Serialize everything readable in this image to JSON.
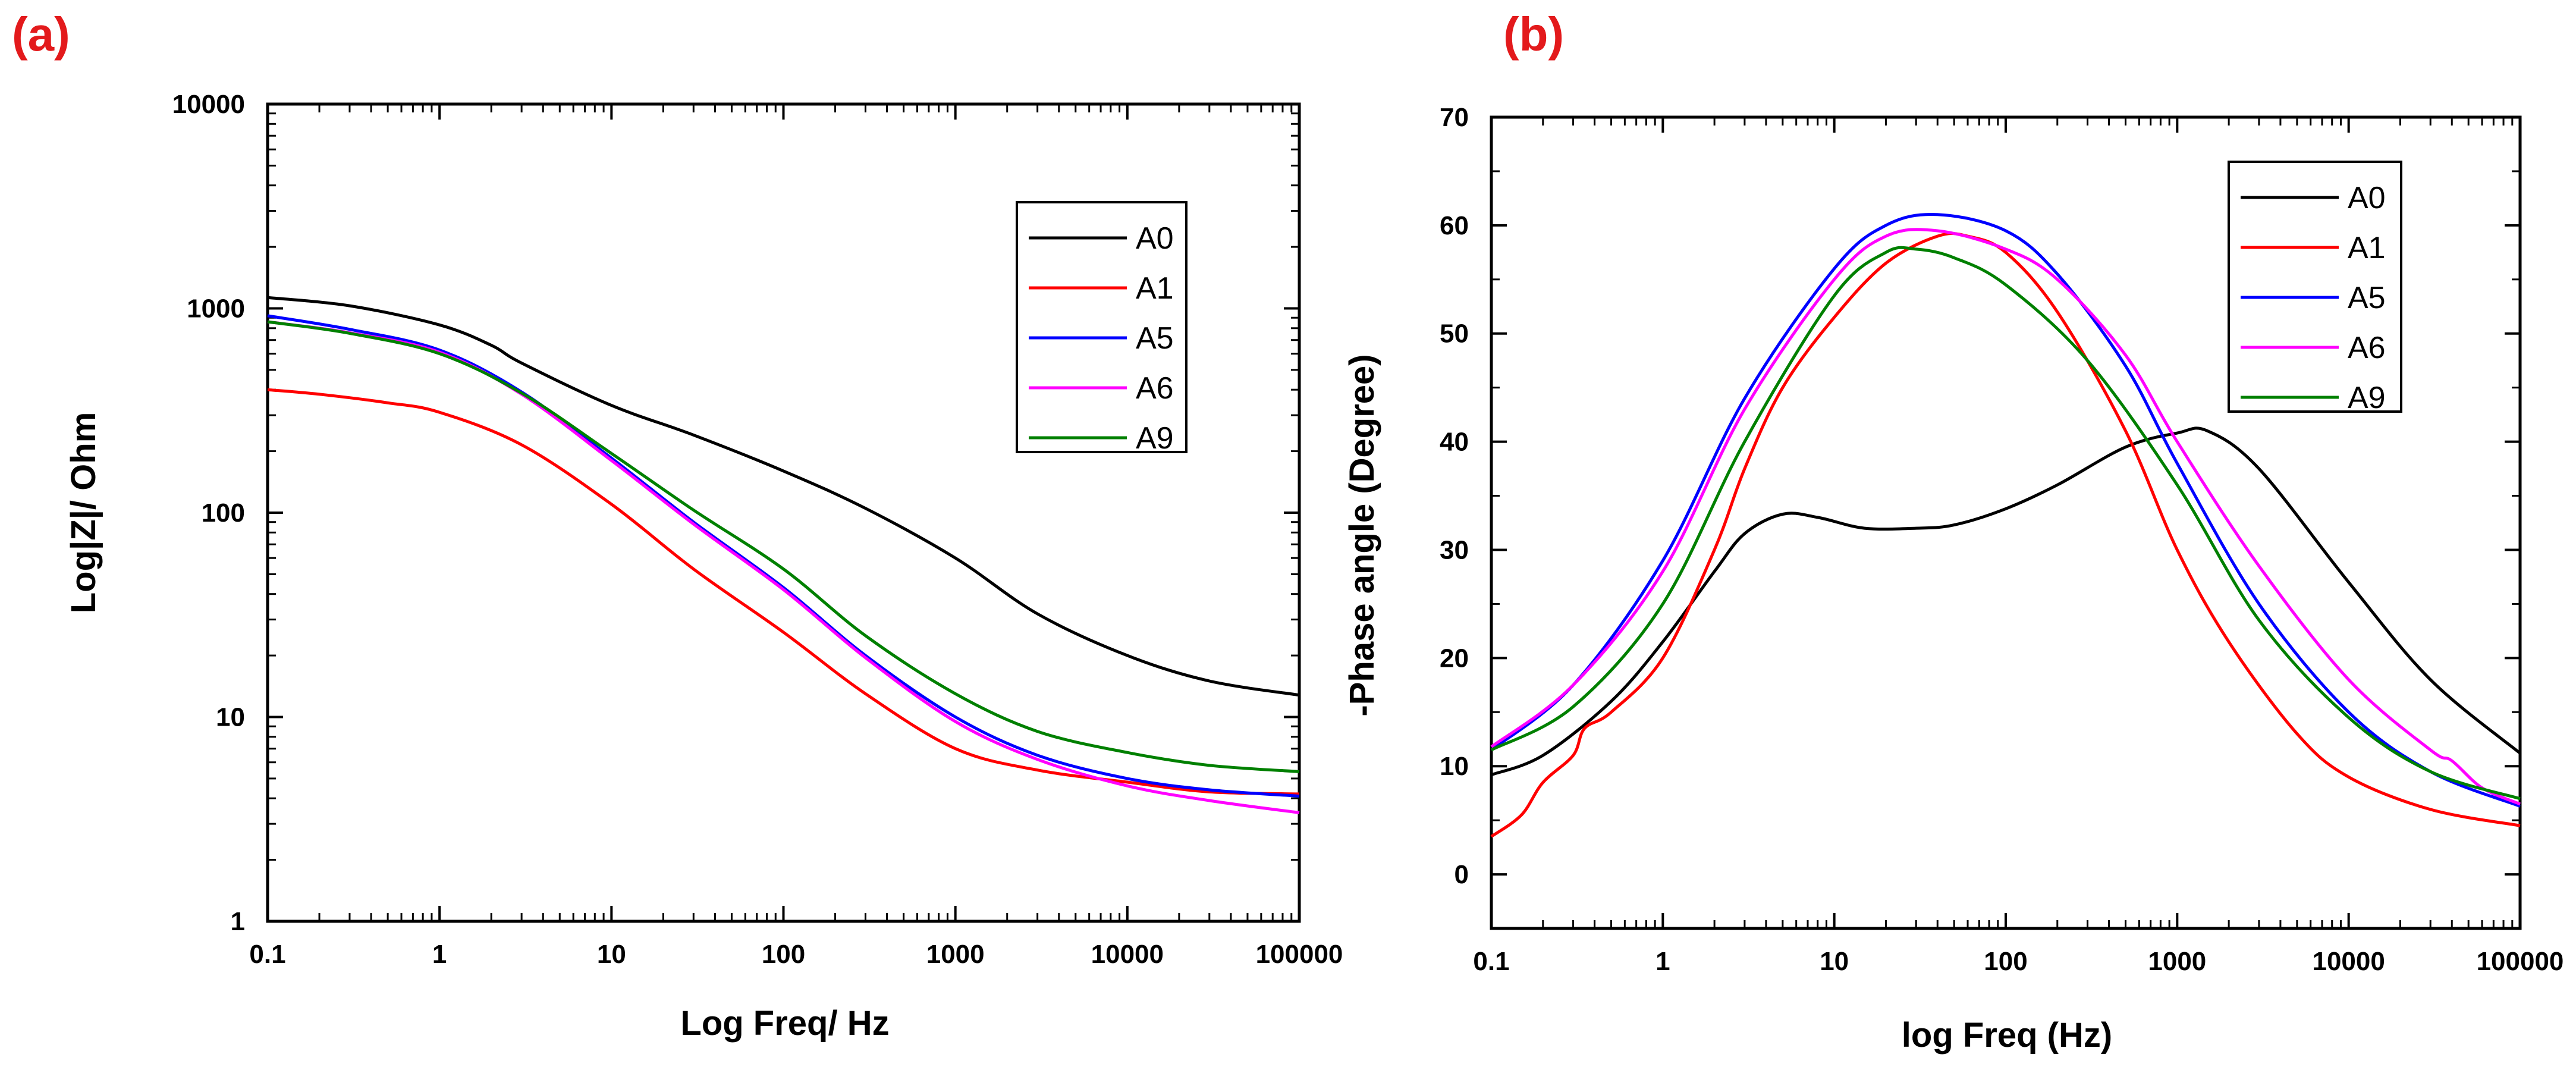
{
  "colors": {
    "A0": "#000000",
    "A1": "#ff0000",
    "A5": "#0000ff",
    "A6": "#ff00ff",
    "A9": "#008000",
    "panel_label": "#e31a1c"
  },
  "chart_data": [
    {
      "panel_label": "(a)",
      "type": "line",
      "xscale": "log",
      "yscale": "log",
      "xlabel": "Log Freq/ Hz",
      "ylabel": "Log|Z|/ Ohm",
      "xlim": [
        0.1,
        100000
      ],
      "ylim": [
        1,
        10000
      ],
      "x_ticks": [
        0.1,
        1,
        10,
        100,
        1000,
        10000,
        100000
      ],
      "x_tick_labels": [
        "0.1",
        "1",
        "10",
        "100",
        "1000",
        "10000",
        "100000"
      ],
      "y_ticks": [
        1,
        10,
        100,
        1000,
        10000
      ],
      "y_tick_labels": [
        "1",
        "10",
        "100",
        "1000",
        "10000"
      ],
      "legend_position": "top-right",
      "series": [
        {
          "name": "A0",
          "color": "#000000",
          "points": [
            [
              0.1,
              1130
            ],
            [
              0.3,
              1030
            ],
            [
              1,
              830
            ],
            [
              2,
              660
            ],
            [
              3,
              540
            ],
            [
              10,
              335
            ],
            [
              30,
              240
            ],
            [
              100,
              160
            ],
            [
              300,
              105
            ],
            [
              1000,
              60
            ],
            [
              3000,
              32
            ],
            [
              10000,
              20
            ],
            [
              30000,
              15
            ],
            [
              100000,
              12.8
            ]
          ]
        },
        {
          "name": "A1",
          "color": "#ff0000",
          "points": [
            [
              0.1,
              400
            ],
            [
              0.2,
              380
            ],
            [
              0.5,
              345
            ],
            [
              1,
              310
            ],
            [
              3,
              215
            ],
            [
              10,
              110
            ],
            [
              30,
              53
            ],
            [
              100,
              26
            ],
            [
              300,
              13
            ],
            [
              1000,
              7
            ],
            [
              3000,
              5.5
            ],
            [
              10000,
              4.8
            ],
            [
              30000,
              4.3
            ],
            [
              100000,
              4.2
            ]
          ]
        },
        {
          "name": "A5",
          "color": "#0000ff",
          "points": [
            [
              0.1,
              920
            ],
            [
              0.3,
              790
            ],
            [
              1,
              625
            ],
            [
              3,
              390
            ],
            [
              10,
              185
            ],
            [
              30,
              90
            ],
            [
              100,
              43
            ],
            [
              300,
              20
            ],
            [
              1000,
              10
            ],
            [
              3000,
              6.5
            ],
            [
              10000,
              5
            ],
            [
              30000,
              4.4
            ],
            [
              100000,
              4.1
            ]
          ]
        },
        {
          "name": "A6",
          "color": "#ff00ff",
          "points": [
            [
              0.1,
              860
            ],
            [
              0.3,
              760
            ],
            [
              1,
              610
            ],
            [
              3,
              380
            ],
            [
              10,
              180
            ],
            [
              30,
              88
            ],
            [
              100,
              42
            ],
            [
              300,
              19.5
            ],
            [
              1000,
              9.5
            ],
            [
              3000,
              6.2
            ],
            [
              10000,
              4.6
            ],
            [
              30000,
              3.9
            ],
            [
              100000,
              3.4
            ]
          ]
        },
        {
          "name": "A9",
          "color": "#008000",
          "points": [
            [
              0.1,
              860
            ],
            [
              0.3,
              755
            ],
            [
              1,
              600
            ],
            [
              3,
              385
            ],
            [
              10,
              195
            ],
            [
              30,
              103
            ],
            [
              100,
              53
            ],
            [
              300,
              25
            ],
            [
              1000,
              13
            ],
            [
              3000,
              8.5
            ],
            [
              10000,
              6.7
            ],
            [
              30000,
              5.8
            ],
            [
              100000,
              5.4
            ]
          ]
        }
      ]
    },
    {
      "panel_label": "(b)",
      "type": "line",
      "xscale": "log",
      "yscale": "linear",
      "xlabel": "log Freq (Hz)",
      "ylabel": "-Phase  angle (Degree)",
      "xlim": [
        0.1,
        100000
      ],
      "ylim": [
        -5,
        70
      ],
      "x_ticks": [
        0.1,
        1,
        10,
        100,
        1000,
        10000,
        100000
      ],
      "x_tick_labels": [
        "0.1",
        "1",
        "10",
        "100",
        "1000",
        "10000",
        "100000"
      ],
      "y_ticks": [
        0,
        10,
        20,
        30,
        40,
        50,
        60,
        70
      ],
      "y_tick_labels": [
        "0",
        "10",
        "20",
        "30",
        "40",
        "50",
        "60",
        "70"
      ],
      "legend_position": "top-right",
      "series": [
        {
          "name": "A0",
          "color": "#000000",
          "points": [
            [
              0.1,
              9.2
            ],
            [
              0.2,
              11
            ],
            [
              0.5,
              16
            ],
            [
              1,
              21.5
            ],
            [
              2,
              28
            ],
            [
              3,
              31.5
            ],
            [
              5,
              33.3
            ],
            [
              8,
              33
            ],
            [
              15,
              32
            ],
            [
              30,
              32
            ],
            [
              50,
              32.3
            ],
            [
              100,
              33.8
            ],
            [
              200,
              36
            ],
            [
              500,
              39.5
            ],
            [
              1000,
              40.8
            ],
            [
              1500,
              41
            ],
            [
              3000,
              37.5
            ],
            [
              10000,
              27
            ],
            [
              30000,
              18
            ],
            [
              100000,
              11.2
            ]
          ]
        },
        {
          "name": "A1",
          "color": "#ff0000",
          "points": [
            [
              0.1,
              3.5
            ],
            [
              0.15,
              5.5
            ],
            [
              0.2,
              8.5
            ],
            [
              0.3,
              11
            ],
            [
              0.35,
              13.5
            ],
            [
              0.5,
              15
            ],
            [
              1,
              20
            ],
            [
              2,
              30
            ],
            [
              3,
              37.5
            ],
            [
              5,
              45
            ],
            [
              10,
              51.5
            ],
            [
              20,
              56.5
            ],
            [
              40,
              59
            ],
            [
              60,
              59
            ],
            [
              100,
              57.5
            ],
            [
              200,
              52
            ],
            [
              500,
              41
            ],
            [
              1000,
              30
            ],
            [
              2000,
              21.5
            ],
            [
              5000,
              13
            ],
            [
              10000,
              9
            ],
            [
              30000,
              6
            ],
            [
              100000,
              4.5
            ]
          ]
        },
        {
          "name": "A5",
          "color": "#0000ff",
          "points": [
            [
              0.1,
              11.5
            ],
            [
              0.3,
              17.5
            ],
            [
              1,
              29
            ],
            [
              3,
              44
            ],
            [
              10,
              56
            ],
            [
              20,
              60
            ],
            [
              40,
              61
            ],
            [
              100,
              59.5
            ],
            [
              200,
              55.5
            ],
            [
              500,
              47
            ],
            [
              1000,
              38
            ],
            [
              3000,
              25
            ],
            [
              10000,
              15
            ],
            [
              30000,
              9.5
            ],
            [
              100000,
              6.3
            ]
          ]
        },
        {
          "name": "A6",
          "color": "#ff00ff",
          "points": [
            [
              0.1,
              11.8
            ],
            [
              0.3,
              17.5
            ],
            [
              1,
              28
            ],
            [
              3,
              43
            ],
            [
              10,
              55
            ],
            [
              20,
              59
            ],
            [
              40,
              59.5
            ],
            [
              100,
              57.8
            ],
            [
              200,
              55
            ],
            [
              500,
              48
            ],
            [
              1000,
              40
            ],
            [
              3000,
              28.5
            ],
            [
              10000,
              18
            ],
            [
              30000,
              11.5
            ],
            [
              40000,
              10.5
            ],
            [
              60000,
              8
            ],
            [
              100000,
              6.5
            ]
          ]
        },
        {
          "name": "A9",
          "color": "#008000",
          "points": [
            [
              0.1,
              11.5
            ],
            [
              0.3,
              15.5
            ],
            [
              1,
              25
            ],
            [
              3,
              40
            ],
            [
              10,
              53.5
            ],
            [
              20,
              57.5
            ],
            [
              30,
              57.8
            ],
            [
              50,
              57
            ],
            [
              100,
              54.5
            ],
            [
              300,
              47.5
            ],
            [
              1000,
              36
            ],
            [
              3000,
              23.5
            ],
            [
              10000,
              14.5
            ],
            [
              30000,
              9.5
            ],
            [
              100000,
              7
            ]
          ]
        }
      ]
    }
  ]
}
